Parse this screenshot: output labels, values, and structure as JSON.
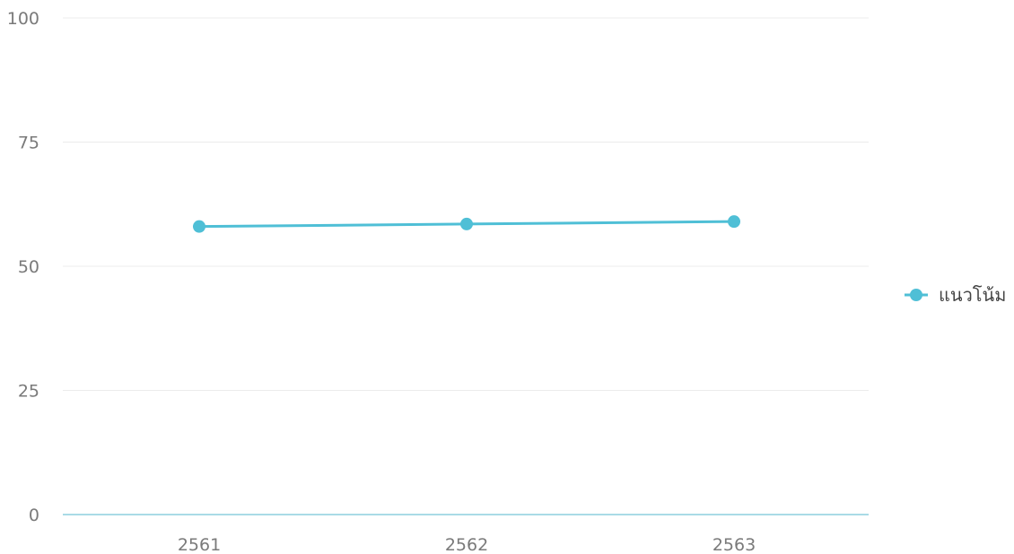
{
  "chart_data": {
    "type": "line",
    "categories": [
      "2561",
      "2562",
      "2563"
    ],
    "series": [
      {
        "name": "แนวโน้ม",
        "values": [
          58,
          58.5,
          59
        ],
        "color": "#4fbfd6"
      }
    ],
    "y_ticks": [
      "0",
      "25",
      "50",
      "75",
      "100"
    ],
    "ylim": [
      0,
      100
    ],
    "grid": true,
    "legend_position": "right",
    "colors": {
      "grid": "#ececec",
      "baseline": "#a9dbe6",
      "tick_text": "#7a7a7a",
      "legend_text": "#444444"
    }
  }
}
